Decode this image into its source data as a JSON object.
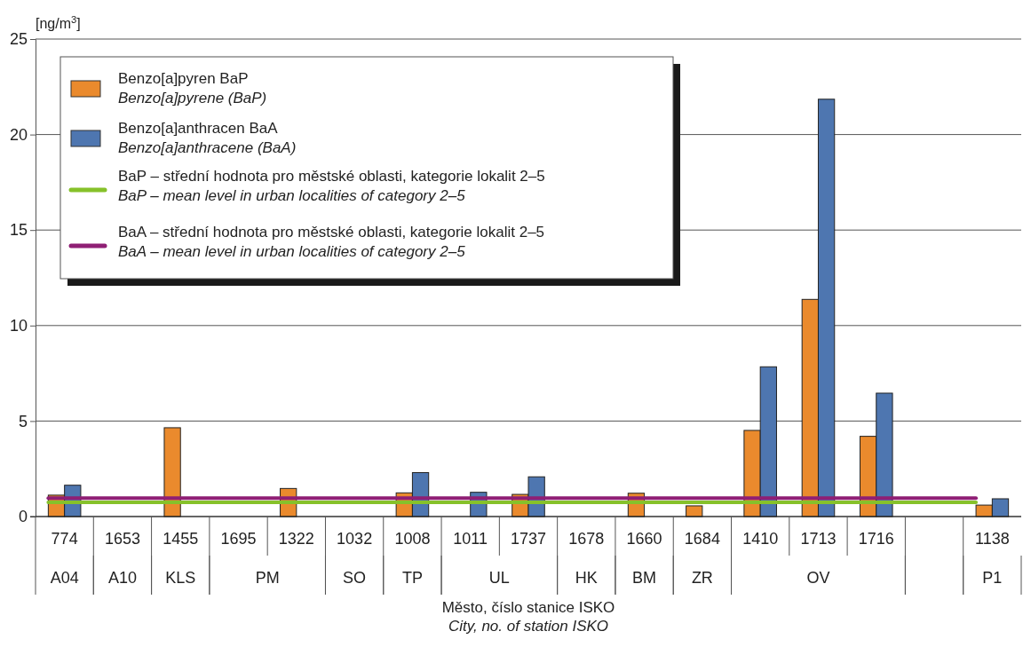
{
  "chart_data": {
    "type": "bar",
    "ylabel": "[ng/m$^{3}$]",
    "xlabel": "Město, číslo stanice ISKO\nCity, no. of station ISKO",
    "categories": [
      "774\nA04",
      "1653\nA10",
      "1455\nKLS",
      "1695\nPM",
      "1322",
      "1032\nSO",
      "1008\nTP",
      "1011\nUL",
      "1737",
      "1678\nHK",
      "1660\nBM",
      "1684\nZR",
      "1410\nOV",
      "1713",
      "1716",
      null,
      "1138\nP1"
    ],
    "series": [
      {
        "name": "Benzo[a]pyren BaP\nBenzo[a]pyrene (BaP)",
        "color": "#ea8a2d",
        "values": [
          1.12,
          null,
          4.65,
          null,
          1.47,
          null,
          1.24,
          null,
          1.16,
          null,
          1.22,
          0.56,
          4.51,
          11.37,
          4.2,
          null,
          0.6
        ]
      },
      {
        "name": "Benzo[a]anthracen BaA\nBenzo[a]anthracene (BaA)",
        "color": "#4e76b0",
        "values": [
          1.64,
          null,
          null,
          null,
          null,
          null,
          2.3,
          1.27,
          2.08,
          null,
          null,
          null,
          7.84,
          21.85,
          6.46,
          null,
          0.93
        ]
      },
      {
        "type": "line",
        "name": "BaP – střední hodnota pro městské oblasti, kategorie lokalit 2–5\nBaP – mean level in urban localities of category 2–5",
        "color": "#86c12a",
        "values": [
          0.74,
          0.74,
          0.74,
          0.74,
          0.74,
          0.74,
          0.74,
          0.74,
          0.74,
          0.74,
          0.74,
          0.74,
          0.74,
          0.74,
          0.74,
          0.74,
          0.74
        ]
      },
      {
        "type": "line",
        "name": "BaA – střední hodnota pro městské oblasti, kategorie lokalit 2–5\nBaA – mean level in urban localities of category 2–5",
        "color": "#8f1f74",
        "values": [
          0.97,
          0.97,
          0.97,
          0.97,
          0.97,
          0.97,
          0.97,
          0.97,
          0.97,
          0.97,
          0.97,
          0.97,
          0.97,
          0.97,
          0.97,
          0.97,
          0.97
        ]
      }
    ],
    "ylim": [
      0,
      25
    ],
    "yticks": [
      0,
      5,
      10,
      15,
      20,
      25
    ],
    "grid": "y",
    "legend": "top left"
  }
}
